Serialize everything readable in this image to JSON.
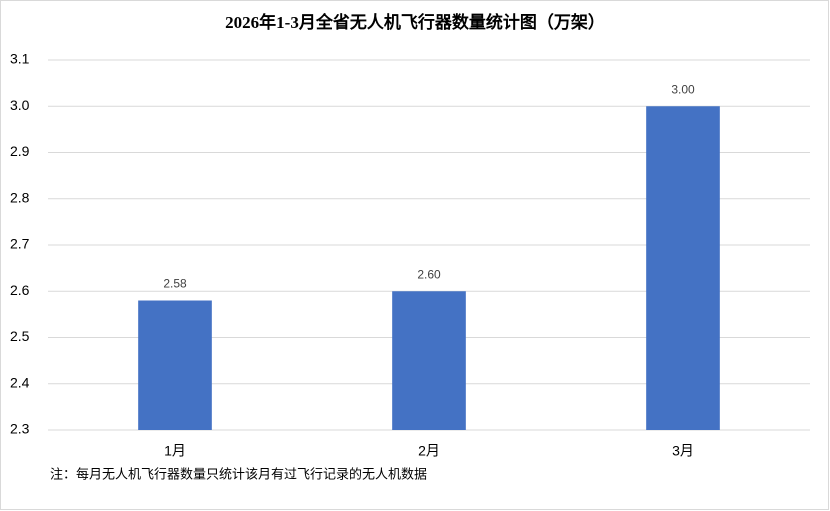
{
  "chart_data": {
    "type": "bar",
    "title": "2026年1-3月全省无人机飞行器数量统计图（万架）",
    "categories": [
      "1月",
      "2月",
      "3月"
    ],
    "values": [
      2.58,
      2.6,
      3.0
    ],
    "value_labels": [
      "2.58",
      "2.60",
      "3.00"
    ],
    "color": "#4472c4",
    "ylim": [
      2.3,
      3.1
    ],
    "yticks": [
      2.3,
      2.4,
      2.5,
      2.6,
      2.7,
      2.8,
      2.9,
      {
        "value": 3.0,
        "label": "3.0"
      },
      3.1
    ],
    "grid": true,
    "annotations": [
      "注：每月无人机飞行器数量只统计该月有过飞行记录的无人机数据"
    ]
  }
}
